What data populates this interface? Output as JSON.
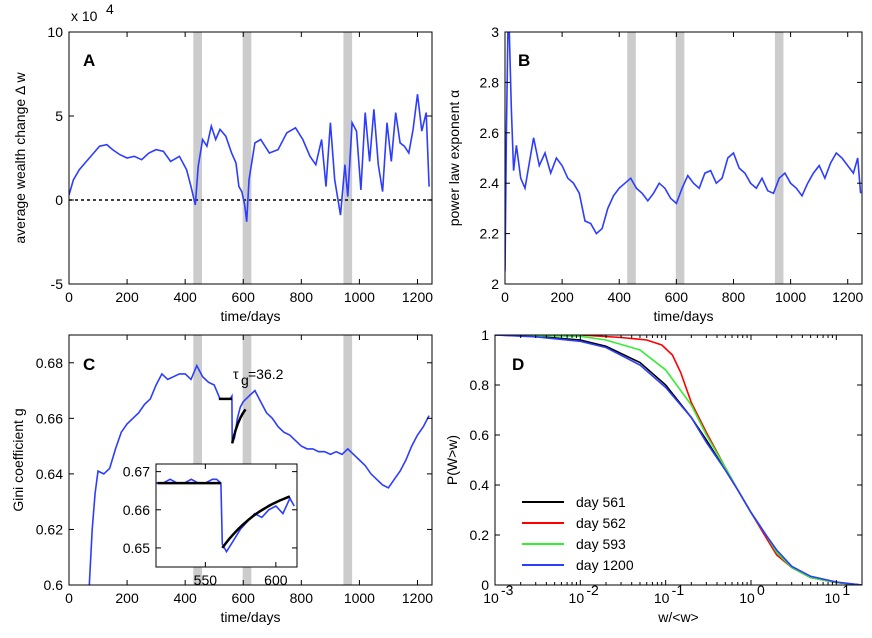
{
  "chart_data": [
    {
      "panel": "A",
      "type": "line",
      "xlabel": "time/days",
      "ylabel": "average wealth change Δ w",
      "exponent_label": "x 10",
      "exponent_power": "4",
      "xlim": [
        0,
        1250
      ],
      "ylim": [
        -5,
        10
      ],
      "xticks": [
        "0",
        "200",
        "400",
        "600",
        "800",
        "1000",
        "1200"
      ],
      "yticks": [
        "-5",
        "0",
        "5",
        "10"
      ],
      "color": "#2d3dff",
      "shaded_intervals": [
        [
          428,
          458
        ],
        [
          598,
          628
        ],
        [
          945,
          975
        ]
      ],
      "reference_line": 0,
      "series": [
        {
          "x": [
            0,
            15,
            35,
            60,
            85,
            105,
            130,
            150,
            175,
            200,
            225,
            250,
            275,
            300,
            325,
            350,
            380,
            405,
            420,
            435,
            445,
            460,
            475,
            490,
            505,
            520,
            540,
            560,
            575,
            585,
            595,
            605,
            612,
            620,
            640,
            660,
            690,
            720,
            750,
            780,
            805,
            830,
            850,
            870,
            885,
            900,
            915,
            935,
            950,
            960,
            975,
            990,
            1005,
            1020,
            1035,
            1050,
            1065,
            1080,
            1095,
            1110,
            1125,
            1140,
            1155,
            1170,
            1185,
            1200,
            1215,
            1230,
            1240
          ],
          "values": [
            0.3,
            1.2,
            1.8,
            2.3,
            2.8,
            3.2,
            3.3,
            3.0,
            2.7,
            2.5,
            2.6,
            2.4,
            2.8,
            3.0,
            2.9,
            2.3,
            2.6,
            1.8,
            0.8,
            -0.3,
            2.0,
            3.6,
            3.2,
            4.4,
            3.6,
            4.2,
            3.8,
            2.8,
            2.2,
            0.8,
            0.5,
            -0.3,
            -1.3,
            1.2,
            3.4,
            3.6,
            2.8,
            3.0,
            4.0,
            4.3,
            3.6,
            2.6,
            2.1,
            3.6,
            0.8,
            4.6,
            1.2,
            -0.9,
            2.1,
            0.2,
            4.6,
            4.1,
            0.6,
            5.2,
            2.3,
            5.4,
            2.1,
            0.5,
            4.6,
            2.3,
            5.2,
            3.4,
            3.2,
            2.8,
            4.2,
            6.3,
            4.1,
            5.2,
            0.8
          ]
        }
      ]
    },
    {
      "panel": "B",
      "type": "line",
      "xlabel": "time/days",
      "ylabel": "power law exponent α",
      "xlim": [
        0,
        1250
      ],
      "ylim": [
        2,
        3
      ],
      "xticks": [
        "0",
        "200",
        "400",
        "600",
        "800",
        "1000",
        "1200"
      ],
      "yticks": [
        "2",
        "2.2",
        "2.4",
        "2.6",
        "2.8",
        "3"
      ],
      "color": "#2d3dff",
      "shaded_intervals": [
        [
          428,
          458
        ],
        [
          598,
          628
        ],
        [
          945,
          975
        ]
      ],
      "series": [
        {
          "x": [
            0,
            5,
            10,
            15,
            22,
            30,
            40,
            55,
            70,
            85,
            100,
            120,
            140,
            160,
            180,
            200,
            220,
            240,
            260,
            280,
            300,
            320,
            340,
            360,
            380,
            400,
            420,
            440,
            460,
            480,
            500,
            520,
            540,
            560,
            580,
            600,
            620,
            640,
            660,
            680,
            700,
            720,
            740,
            760,
            780,
            800,
            820,
            840,
            860,
            880,
            900,
            920,
            940,
            960,
            980,
            1000,
            1020,
            1040,
            1060,
            1080,
            1100,
            1120,
            1140,
            1160,
            1180,
            1200,
            1220,
            1235,
            1245
          ],
          "values": [
            2.05,
            2.6,
            3.0,
            3.0,
            2.7,
            2.45,
            2.55,
            2.42,
            2.38,
            2.48,
            2.58,
            2.47,
            2.52,
            2.44,
            2.5,
            2.47,
            2.42,
            2.4,
            2.36,
            2.25,
            2.24,
            2.2,
            2.22,
            2.3,
            2.35,
            2.38,
            2.4,
            2.42,
            2.38,
            2.36,
            2.33,
            2.36,
            2.4,
            2.38,
            2.34,
            2.32,
            2.38,
            2.43,
            2.4,
            2.38,
            2.44,
            2.45,
            2.4,
            2.42,
            2.5,
            2.52,
            2.46,
            2.44,
            2.4,
            2.38,
            2.42,
            2.37,
            2.36,
            2.42,
            2.44,
            2.4,
            2.38,
            2.35,
            2.4,
            2.44,
            2.47,
            2.42,
            2.48,
            2.52,
            2.5,
            2.47,
            2.44,
            2.5,
            2.36
          ]
        }
      ]
    },
    {
      "panel": "C",
      "type": "line",
      "xlabel": "time/days",
      "ylabel": "Gini coefficient g",
      "xlim": [
        0,
        1250
      ],
      "ylim": [
        0.6,
        0.69
      ],
      "xticks": [
        "0",
        "200",
        "400",
        "600",
        "800",
        "1000",
        "1200"
      ],
      "yticks": [
        "0.6",
        "0.62",
        "0.64",
        "0.66",
        "0.68"
      ],
      "color": "#2d3dff",
      "shaded_intervals": [
        [
          428,
          458
        ],
        [
          598,
          628
        ],
        [
          945,
          975
        ]
      ],
      "annotation_tau": "τ",
      "annotation_sub": "g",
      "annotation_value": "=36.2",
      "fit_segments": [
        {
          "x": [
            516,
            561
          ],
          "values": [
            0.667,
            0.667
          ]
        },
        {
          "x": [
            562,
            608
          ],
          "values": [
            0.651,
            0.6632
          ]
        }
      ],
      "series": [
        {
          "x": [
            70,
            80,
            90,
            100,
            120,
            140,
            160,
            180,
            200,
            220,
            240,
            260,
            280,
            300,
            320,
            340,
            360,
            380,
            400,
            420,
            440,
            460,
            480,
            500,
            520,
            540,
            555,
            561,
            562,
            570,
            580,
            590,
            600,
            620,
            640,
            660,
            680,
            700,
            720,
            740,
            760,
            780,
            800,
            820,
            840,
            860,
            880,
            900,
            920,
            940,
            960,
            980,
            1000,
            1020,
            1040,
            1060,
            1080,
            1100,
            1120,
            1140,
            1160,
            1180,
            1200,
            1220,
            1240
          ],
          "values": [
            0.6,
            0.62,
            0.633,
            0.641,
            0.64,
            0.642,
            0.649,
            0.655,
            0.658,
            0.66,
            0.662,
            0.665,
            0.667,
            0.672,
            0.676,
            0.674,
            0.675,
            0.676,
            0.676,
            0.674,
            0.679,
            0.675,
            0.673,
            0.672,
            0.667,
            0.667,
            0.667,
            0.668,
            0.651,
            0.653,
            0.66,
            0.664,
            0.666,
            0.668,
            0.67,
            0.666,
            0.662,
            0.66,
            0.657,
            0.655,
            0.654,
            0.652,
            0.65,
            0.649,
            0.649,
            0.648,
            0.648,
            0.647,
            0.648,
            0.647,
            0.649,
            0.647,
            0.645,
            0.643,
            0.64,
            0.638,
            0.636,
            0.635,
            0.638,
            0.641,
            0.645,
            0.65,
            0.654,
            0.657,
            0.661
          ]
        }
      ]
    },
    {
      "panel": "C-inset",
      "type": "line",
      "xlim": [
        515,
        615
      ],
      "ylim": [
        0.645,
        0.672
      ],
      "xticks": [
        "550",
        "600"
      ],
      "yticks": [
        "0.65",
        "0.66",
        "0.67"
      ],
      "color": "#2d3dff",
      "fit_segments": [
        {
          "x": [
            516,
            561
          ],
          "values": [
            0.667,
            0.667
          ]
        },
        {
          "x": [
            562,
            610
          ],
          "values": [
            0.65,
            0.6635
          ]
        }
      ],
      "series": [
        {
          "x": [
            515,
            520,
            525,
            530,
            535,
            540,
            545,
            550,
            555,
            558,
            561,
            562,
            565,
            570,
            575,
            580,
            585,
            590,
            595,
            600,
            605,
            610,
            613
          ],
          "values": [
            0.667,
            0.667,
            0.668,
            0.667,
            0.667,
            0.668,
            0.667,
            0.667,
            0.668,
            0.668,
            0.667,
            0.651,
            0.649,
            0.652,
            0.655,
            0.657,
            0.659,
            0.658,
            0.66,
            0.661,
            0.659,
            0.663,
            0.661
          ]
        }
      ]
    },
    {
      "panel": "D",
      "type": "line",
      "xlabel": "w/<w>",
      "ylabel": "P(W>w)",
      "xscale": "log",
      "xlim": [
        0.001,
        20
      ],
      "ylim": [
        0,
        1
      ],
      "xticks": [
        "10",
        "10",
        "10",
        "10",
        "10"
      ],
      "xtick_powers": [
        "-3",
        "-2",
        "-1",
        "0",
        "1"
      ],
      "xtick_values": [
        0.001,
        0.01,
        0.1,
        1,
        10
      ],
      "yticks": [
        "0",
        "0.2",
        "0.4",
        "0.6",
        "0.8",
        "1"
      ],
      "legend_position": "lower-left",
      "series": [
        {
          "name": "day 561",
          "color": "#000000",
          "x": [
            0.001,
            0.003,
            0.01,
            0.02,
            0.05,
            0.1,
            0.2,
            0.3,
            0.5,
            0.7,
            1,
            1.5,
            2,
            3,
            5,
            10,
            20
          ],
          "values": [
            1.0,
            0.995,
            0.98,
            0.955,
            0.89,
            0.8,
            0.67,
            0.58,
            0.46,
            0.38,
            0.29,
            0.2,
            0.13,
            0.07,
            0.03,
            0.01,
            0.0
          ]
        },
        {
          "name": "day 562",
          "color": "#ff0000",
          "x": [
            0.001,
            0.01,
            0.03,
            0.06,
            0.09,
            0.12,
            0.15,
            0.2,
            0.3,
            0.5,
            0.7,
            1,
            1.5,
            2,
            3,
            5,
            10,
            20
          ],
          "values": [
            1.0,
            1.0,
            0.99,
            0.98,
            0.96,
            0.92,
            0.85,
            0.73,
            0.61,
            0.47,
            0.38,
            0.29,
            0.19,
            0.12,
            0.07,
            0.03,
            0.01,
            0.0
          ]
        },
        {
          "name": "day 593",
          "color": "#33ee33",
          "x": [
            0.001,
            0.01,
            0.02,
            0.05,
            0.1,
            0.2,
            0.3,
            0.5,
            0.7,
            1,
            1.5,
            2,
            3,
            5,
            10,
            20
          ],
          "values": [
            1.0,
            0.995,
            0.98,
            0.94,
            0.86,
            0.72,
            0.6,
            0.47,
            0.38,
            0.29,
            0.2,
            0.13,
            0.07,
            0.03,
            0.01,
            0.0
          ]
        },
        {
          "name": "day 1200",
          "color": "#2d3dff",
          "x": [
            0.001,
            0.003,
            0.01,
            0.02,
            0.05,
            0.1,
            0.2,
            0.3,
            0.5,
            0.7,
            1,
            1.5,
            2,
            3,
            5,
            10,
            20
          ],
          "values": [
            1.0,
            0.993,
            0.975,
            0.95,
            0.88,
            0.79,
            0.67,
            0.57,
            0.46,
            0.38,
            0.29,
            0.2,
            0.14,
            0.075,
            0.035,
            0.012,
            0.0
          ]
        }
      ]
    }
  ]
}
